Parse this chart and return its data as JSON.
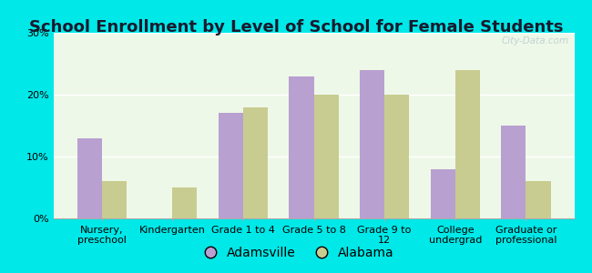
{
  "title": "School Enrollment by Level of School for Female Students",
  "categories": [
    "Nursery,\npreschool",
    "Kindergarten",
    "Grade 1 to 4",
    "Grade 5 to 8",
    "Grade 9 to\n12",
    "College\nundergrad",
    "Graduate or\nprofessional"
  ],
  "adamsville": [
    13,
    0,
    17,
    23,
    24,
    8,
    15
  ],
  "alabama": [
    6,
    5,
    18,
    20,
    20,
    24,
    6
  ],
  "adamsville_color": "#b8a0d0",
  "alabama_color": "#c8cc90",
  "background_color": "#00e8e8",
  "plot_bg_color": "#eef8e8",
  "ylabel_ticks": [
    "0%",
    "10%",
    "20%",
    "30%"
  ],
  "yticks": [
    0,
    10,
    20,
    30
  ],
  "ylim": [
    0,
    30
  ],
  "bar_width": 0.35,
  "legend_labels": [
    "Adamsville",
    "Alabama"
  ],
  "title_fontsize": 13,
  "tick_fontsize": 8,
  "legend_fontsize": 10
}
